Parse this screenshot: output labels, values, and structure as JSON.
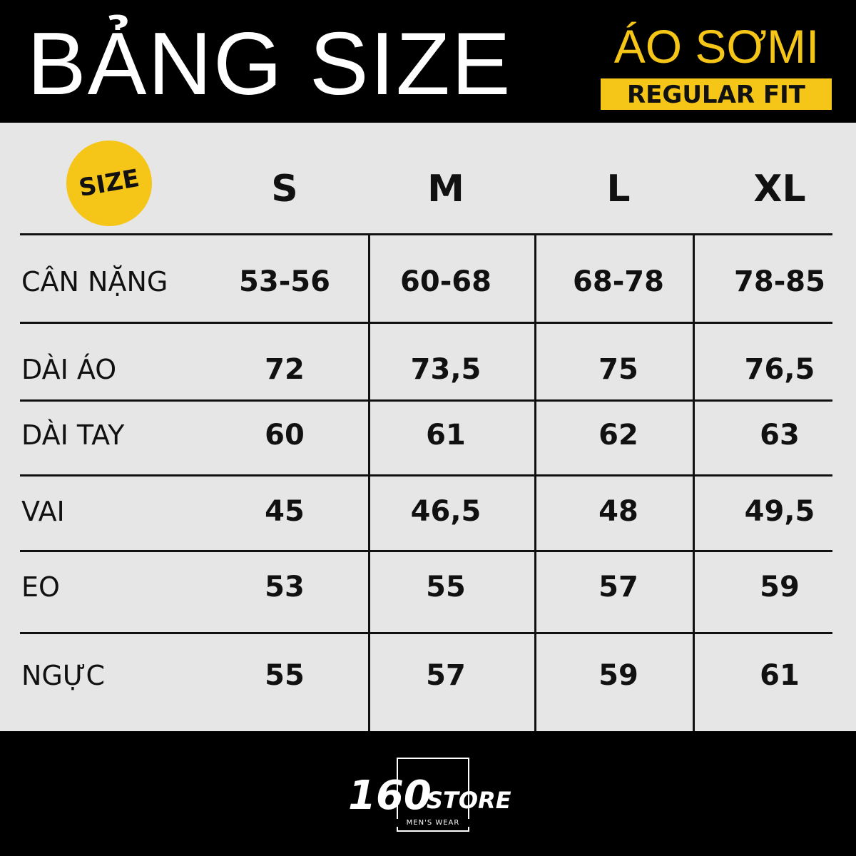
{
  "header": {
    "title": "BẢNG SIZE",
    "product": "ÁO SƠMI",
    "fit": "REGULAR FIT"
  },
  "table": {
    "columns": [
      "SIZE",
      "S",
      "M",
      "L",
      "XL"
    ],
    "rows": [
      [
        "CÂN NẶNG",
        "53-56",
        "60-68",
        "68-78",
        "78-85"
      ],
      [
        "DÀI ÁO",
        "72",
        "73,5",
        "75",
        "76,5"
      ],
      [
        "DÀI TAY",
        "60",
        "61",
        "62",
        "63"
      ],
      [
        "VAI",
        "45",
        "46,5",
        "48",
        "49,5"
      ],
      [
        "EO",
        "53",
        "55",
        "57",
        "59"
      ],
      [
        "NGỰC",
        "55",
        "57",
        "59",
        "61"
      ]
    ]
  },
  "footer": {
    "brand_number": "160",
    "brand_name": "STORE",
    "tagline": "MEN'S WEAR"
  }
}
